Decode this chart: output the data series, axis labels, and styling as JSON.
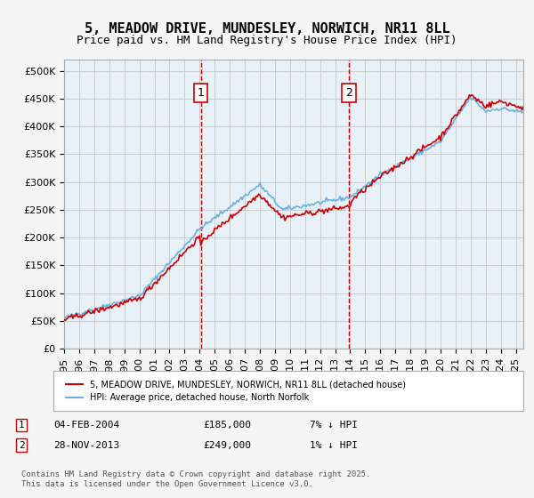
{
  "title": "5, MEADOW DRIVE, MUNDESLEY, NORWICH, NR11 8LL",
  "subtitle": "Price paid vs. HM Land Registry's House Price Index (HPI)",
  "ylabel_ticks": [
    "£0",
    "£50K",
    "£100K",
    "£150K",
    "£200K",
    "£250K",
    "£300K",
    "£350K",
    "£400K",
    "£450K",
    "£500K"
  ],
  "ytick_values": [
    0,
    50000,
    100000,
    150000,
    200000,
    250000,
    300000,
    350000,
    400000,
    450000,
    500000
  ],
  "ylim": [
    0,
    520000
  ],
  "xlim_start": 1995.0,
  "xlim_end": 2025.5,
  "hpi_color": "#6ab0e0",
  "price_color": "#cc0000",
  "marker1_x": 2004.09,
  "marker2_x": 2013.91,
  "marker1_label": "1",
  "marker2_label": "2",
  "marker1_date": "04-FEB-2004",
  "marker1_price": "£185,000",
  "marker1_hpi": "7% ↓ HPI",
  "marker2_date": "28-NOV-2013",
  "marker2_price": "£249,000",
  "marker2_hpi": "1% ↓ HPI",
  "legend_label1": "5, MEADOW DRIVE, MUNDESLEY, NORWICH, NR11 8LL (detached house)",
  "legend_label2": "HPI: Average price, detached house, North Norfolk",
  "footnote": "Contains HM Land Registry data © Crown copyright and database right 2025.\nThis data is licensed under the Open Government Licence v3.0.",
  "background_color": "#e8f0f8",
  "plot_bg_color": "#ffffff",
  "grid_color": "#cccccc",
  "title_fontsize": 11,
  "subtitle_fontsize": 9,
  "tick_fontsize": 8
}
